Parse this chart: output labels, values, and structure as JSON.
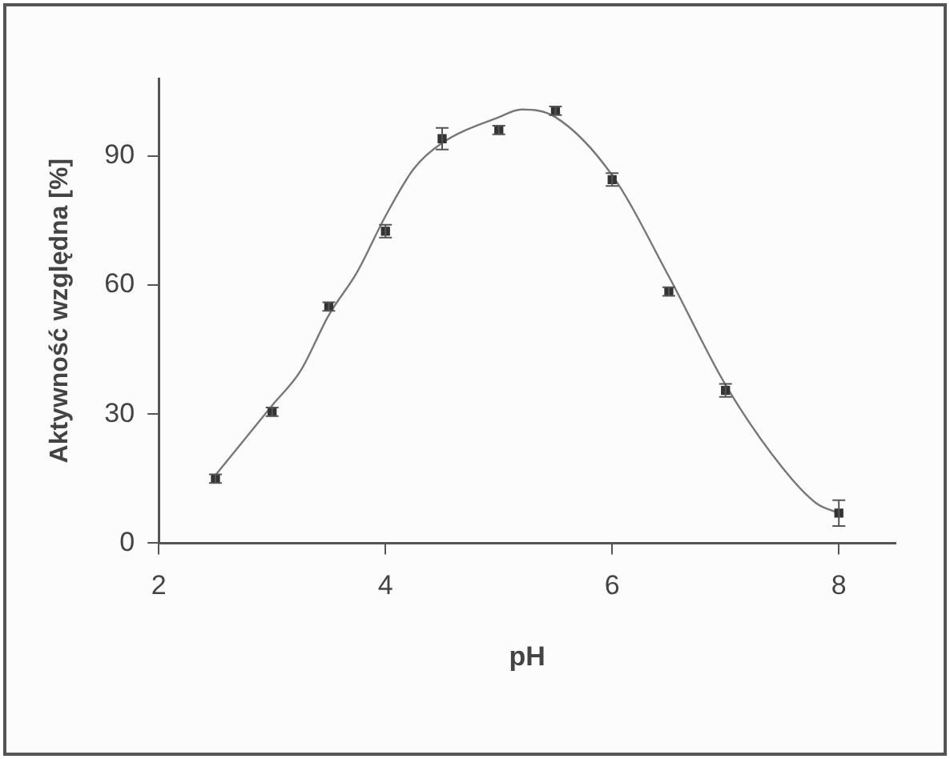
{
  "chart_data": {
    "type": "scatter",
    "xlabel": "pH",
    "ylabel": "Aktywność względna [%]",
    "xlim": [
      2,
      8.5
    ],
    "xticks": [
      2,
      4,
      6,
      8
    ],
    "ylim": [
      0,
      108
    ],
    "yticks": [
      0,
      30,
      60,
      90
    ],
    "grid": false,
    "legend": false,
    "marker": "square",
    "series": [
      {
        "color": "#333333",
        "x": [
          2.5,
          3,
          3.5,
          4,
          4.5,
          5,
          5.5,
          6,
          6.5,
          7,
          8
        ],
        "values": [
          15,
          30.5,
          55,
          72.5,
          94,
          96,
          100.5,
          84.5,
          58.5,
          35.5,
          7
        ],
        "errors": [
          1,
          1,
          1,
          1.5,
          2.5,
          1,
          1,
          1.5,
          1,
          1.5,
          3
        ]
      },
      {
        "type": "line",
        "color": "#777777",
        "marker": "none",
        "x": [
          2.5,
          3,
          3.25,
          3.5,
          3.75,
          4,
          4.25,
          4.5,
          5,
          5.2,
          5.5,
          6,
          6.5,
          7,
          7.5,
          7.8,
          8
        ],
        "values": [
          15.8,
          32,
          40,
          53,
          63,
          76,
          87,
          93,
          99,
          100.8,
          99,
          85.5,
          62,
          36.8,
          17.6,
          9.3,
          7
        ]
      }
    ]
  }
}
